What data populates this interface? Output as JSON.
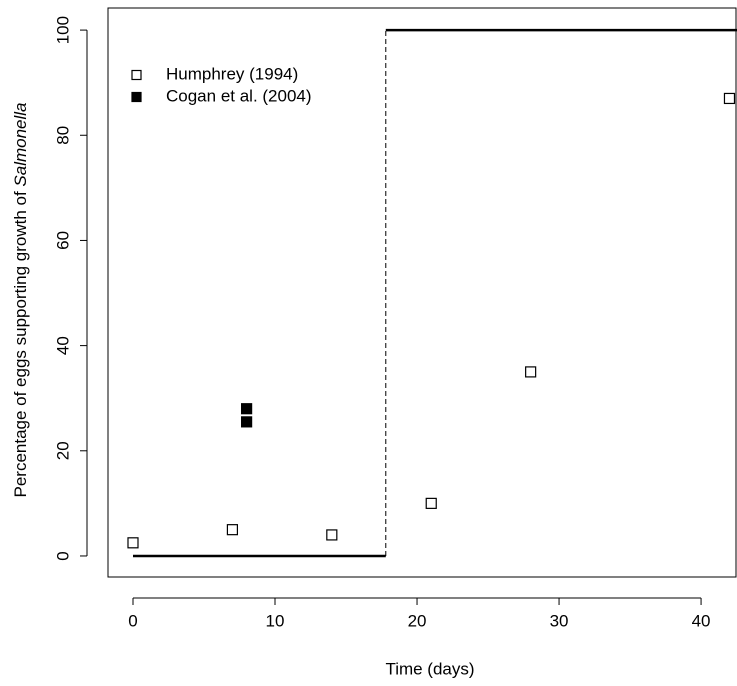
{
  "chart_data": {
    "type": "scatter",
    "xlabel": "Time (days)",
    "ylabel": "Percentage of eggs supporting growth of ",
    "ylabel_italic": "Salmonella",
    "xlim": [
      -1.76,
      42.46
    ],
    "ylim": [
      -4.0,
      104.2
    ],
    "xticks": [
      0,
      10,
      20,
      30,
      40
    ],
    "yticks": [
      0,
      20,
      40,
      60,
      80,
      100
    ],
    "series": [
      {
        "name": "Humphrey (1994)",
        "color": "#ffffff",
        "x": [
          0,
          7,
          14,
          21,
          28,
          42
        ],
        "values": [
          2.5,
          5,
          4,
          10,
          35,
          87
        ]
      },
      {
        "name": "Cogan et al. (2004)",
        "color": "#000000",
        "x": [
          8,
          8
        ],
        "values": [
          28,
          25.5
        ]
      }
    ],
    "step_line": {
      "x": [
        0,
        17.8,
        17.8,
        43
      ],
      "values": [
        0,
        0,
        100,
        100
      ]
    },
    "legend": "upper left"
  }
}
